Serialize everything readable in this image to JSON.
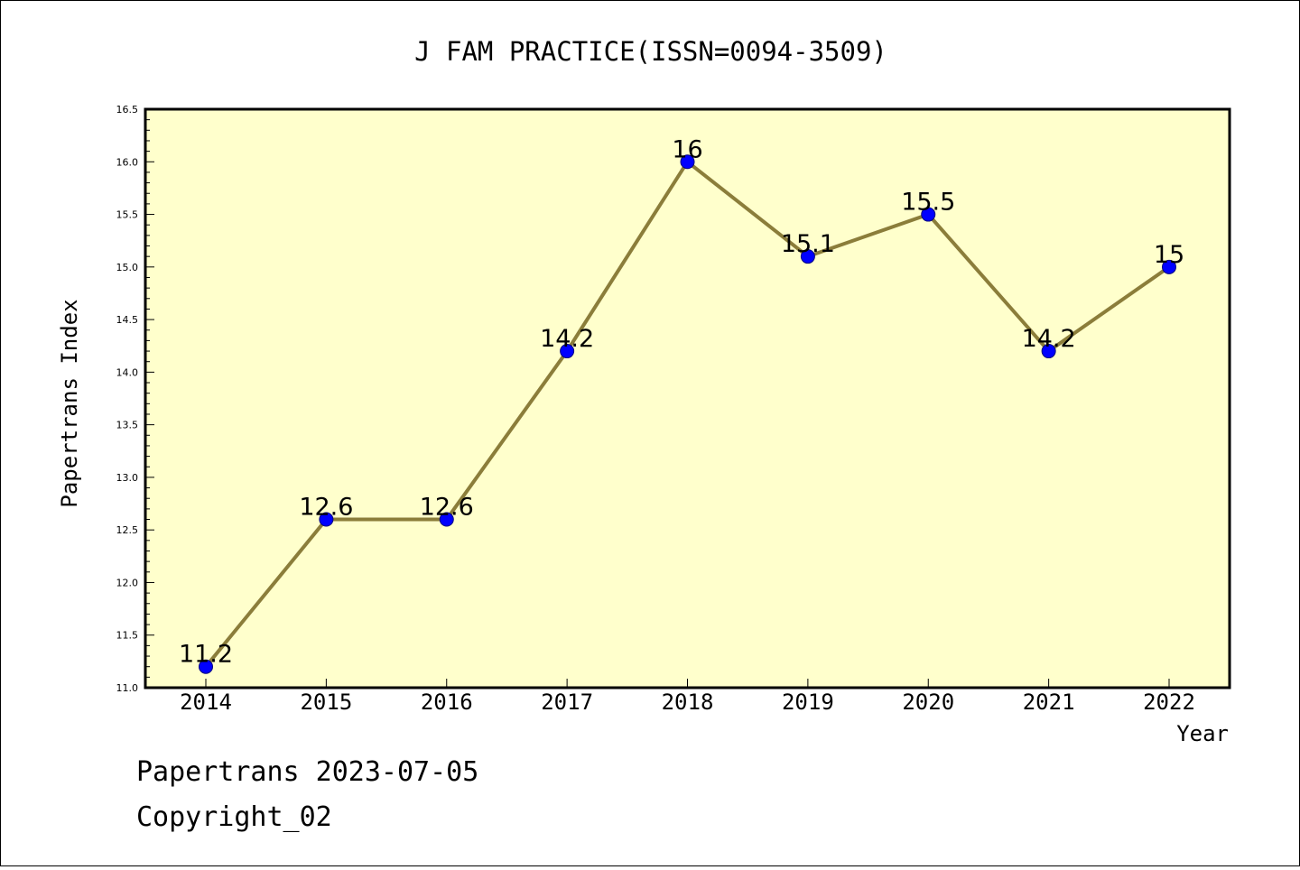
{
  "footer": {
    "line1": "Papertrans 2023-07-05",
    "line2": "Copyright_02"
  },
  "colors": {
    "plot_background": "#ffffcc",
    "line": "#8b7d3a",
    "marker": "#0000ff",
    "marker_edge": "#000080"
  },
  "chart_data": {
    "type": "line",
    "title": "J FAM PRACTICE(ISSN=0094-3509)",
    "xlabel": "Year",
    "ylabel": "Papertrans Index",
    "x": [
      "2014",
      "2015",
      "2016",
      "2017",
      "2018",
      "2019",
      "2020",
      "2021",
      "2022"
    ],
    "series": [
      {
        "values": [
          11.2,
          12.6,
          12.6,
          14.2,
          16.0,
          15.1,
          15.5,
          14.2,
          15.0
        ],
        "labels": [
          "11.2",
          "12.6",
          "12.6",
          "14.2",
          "16",
          "15.1",
          "15.5",
          "14.2",
          "15"
        ]
      }
    ],
    "ylim": [
      11.0,
      16.5
    ],
    "yticks": [
      "11.0",
      "11.5",
      "12.0",
      "12.5",
      "13.0",
      "13.5",
      "14.0",
      "14.5",
      "15.0",
      "15.5",
      "16.0",
      "16.5"
    ],
    "grid": false,
    "legend": "none"
  }
}
